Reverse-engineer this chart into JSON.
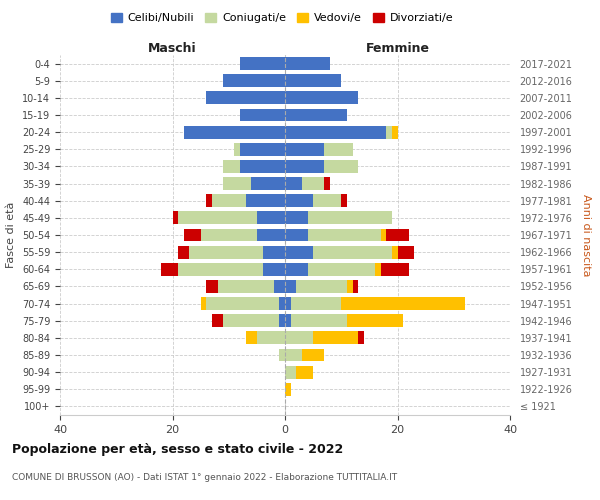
{
  "age_groups": [
    "100+",
    "95-99",
    "90-94",
    "85-89",
    "80-84",
    "75-79",
    "70-74",
    "65-69",
    "60-64",
    "55-59",
    "50-54",
    "45-49",
    "40-44",
    "35-39",
    "30-34",
    "25-29",
    "20-24",
    "15-19",
    "10-14",
    "5-9",
    "0-4"
  ],
  "birth_years": [
    "≤ 1921",
    "1922-1926",
    "1927-1931",
    "1932-1936",
    "1937-1941",
    "1942-1946",
    "1947-1951",
    "1952-1956",
    "1957-1961",
    "1962-1966",
    "1967-1971",
    "1972-1976",
    "1977-1981",
    "1982-1986",
    "1987-1991",
    "1992-1996",
    "1997-2001",
    "2002-2006",
    "2007-2011",
    "2012-2016",
    "2017-2021"
  ],
  "colors": {
    "celibi": "#4472c4",
    "coniugati": "#c5d9a0",
    "vedovi": "#ffc000",
    "divorziati": "#cc0000"
  },
  "maschi": {
    "celibi": [
      0,
      0,
      0,
      0,
      0,
      1,
      1,
      2,
      4,
      4,
      5,
      5,
      7,
      6,
      8,
      8,
      18,
      8,
      14,
      11,
      8
    ],
    "coniugati": [
      0,
      0,
      0,
      1,
      5,
      10,
      13,
      10,
      15,
      13,
      10,
      14,
      6,
      5,
      3,
      1,
      0,
      0,
      0,
      0,
      0
    ],
    "vedovi": [
      0,
      0,
      0,
      0,
      2,
      0,
      1,
      0,
      0,
      0,
      0,
      0,
      0,
      0,
      0,
      0,
      0,
      0,
      0,
      0,
      0
    ],
    "divorziati": [
      0,
      0,
      0,
      0,
      0,
      2,
      0,
      2,
      3,
      2,
      3,
      1,
      1,
      0,
      0,
      0,
      0,
      0,
      0,
      0,
      0
    ]
  },
  "femmine": {
    "celibi": [
      0,
      0,
      0,
      0,
      0,
      1,
      1,
      2,
      4,
      5,
      4,
      4,
      5,
      3,
      7,
      7,
      18,
      11,
      13,
      10,
      8
    ],
    "coniugati": [
      0,
      0,
      2,
      3,
      5,
      10,
      9,
      9,
      12,
      14,
      13,
      15,
      5,
      4,
      6,
      5,
      1,
      0,
      0,
      0,
      0
    ],
    "vedovi": [
      0,
      1,
      3,
      4,
      8,
      10,
      22,
      1,
      1,
      1,
      1,
      0,
      0,
      0,
      0,
      0,
      1,
      0,
      0,
      0,
      0
    ],
    "divorziati": [
      0,
      0,
      0,
      0,
      1,
      0,
      0,
      1,
      5,
      3,
      4,
      0,
      1,
      1,
      0,
      0,
      0,
      0,
      0,
      0,
      0
    ]
  },
  "xlim": 40,
  "title": "Popolazione per età, sesso e stato civile - 2022",
  "subtitle": "COMUNE DI BRUSSON (AO) - Dati ISTAT 1° gennaio 2022 - Elaborazione TUTTITALIA.IT",
  "ylabel_left": "Fasce di età",
  "ylabel_right": "Anni di nascita",
  "xlabel_left": "Maschi",
  "xlabel_right": "Femmine",
  "legend_labels": [
    "Celibi/Nubili",
    "Coniugati/e",
    "Vedovi/e",
    "Divorziati/e"
  ]
}
